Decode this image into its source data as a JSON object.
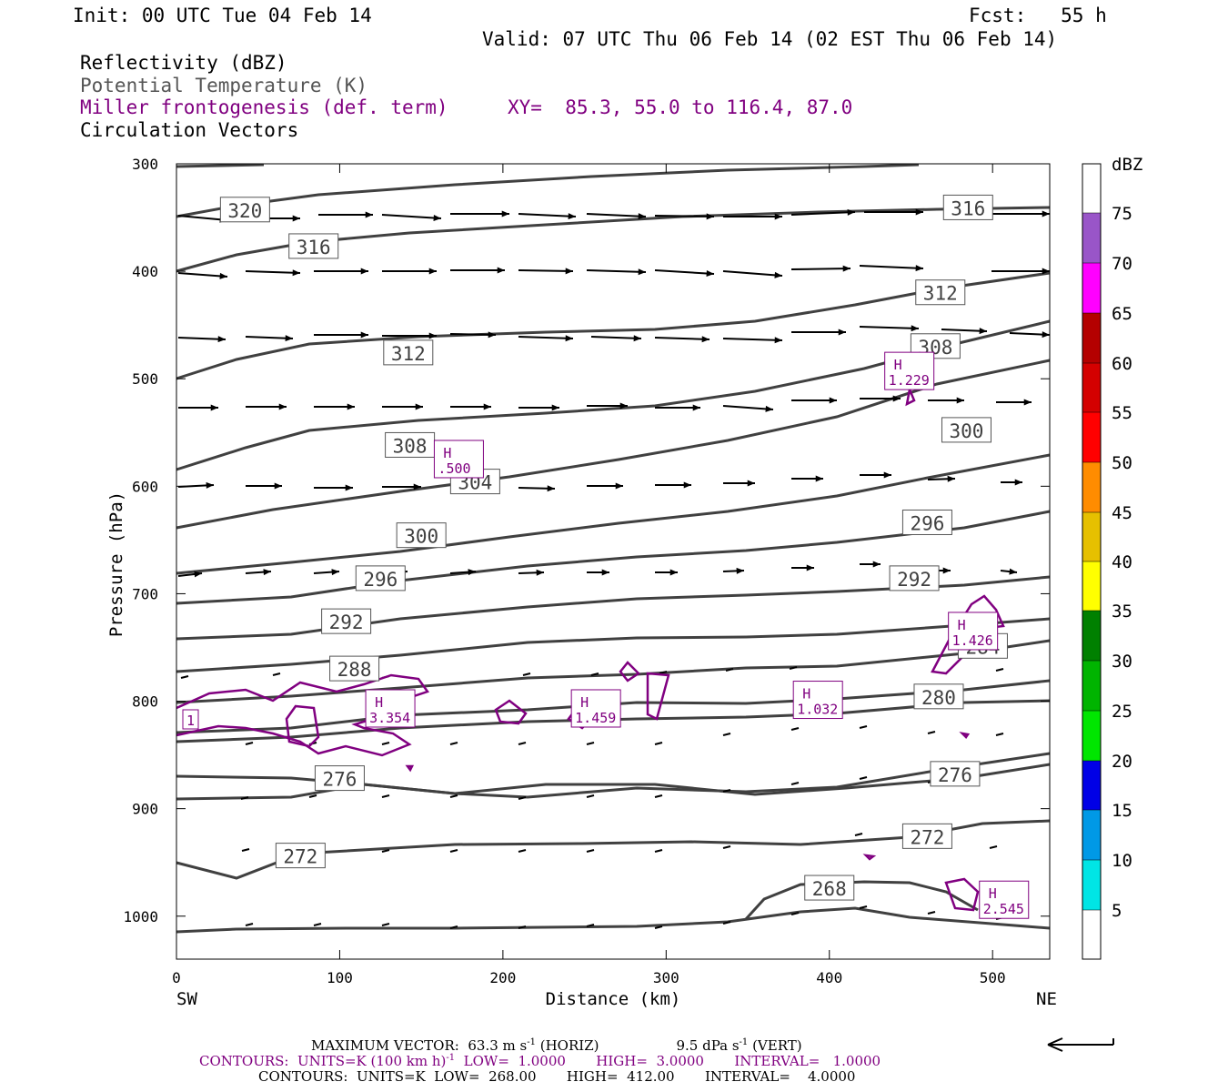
{
  "header": {
    "init": "Init: 00 UTC Tue 04 Feb 14",
    "fcst": "Fcst:   55 h",
    "valid": "Valid: 07 UTC Thu 06 Feb 14 (02 EST Thu 06 Feb 14)",
    "line_reflectivity": "Reflectivity (dBZ)",
    "line_theta": "Potential Temperature (K)",
    "line_miller": "Miller frontogenesis (def. term)",
    "xy_text": "XY=  85.3, 55.0 to 116.4, 87.0",
    "line_vectors": "Circulation Vectors"
  },
  "colors": {
    "theta": "#404040",
    "frontogenesis": "#800080",
    "vectors": "#000000"
  },
  "chart_data": {
    "type": "contour",
    "xlabel": "Distance (km)",
    "ylabel": "Pressure (hPa)",
    "xlim": [
      0,
      535
    ],
    "ylim": [
      1040,
      300
    ],
    "x_ticks": [
      "0",
      "100",
      "200",
      "300",
      "400",
      "500"
    ],
    "y_ticks": [
      "300",
      "400",
      "500",
      "600",
      "700",
      "800",
      "900",
      "1000"
    ],
    "left_endpoint": "SW",
    "right_endpoint": "NE",
    "colorbar": {
      "title": "dBZ",
      "labels": [
        "5",
        "10",
        "15",
        "20",
        "25",
        "30",
        "35",
        "40",
        "45",
        "50",
        "55",
        "60",
        "65",
        "70",
        "75"
      ],
      "colors": [
        "#ffffff",
        "#00e5e5",
        "#0099e6",
        "#0000e6",
        "#00e600",
        "#00b400",
        "#008000",
        "#ffff00",
        "#e6c000",
        "#ff8c00",
        "#ff0000",
        "#d40000",
        "#b40000",
        "#ff00ff",
        "#9955c8",
        "#ffffff"
      ]
    },
    "theta_labels": [
      {
        "text": "320",
        "x": 42,
        "p": 343
      },
      {
        "text": "316",
        "x": 84,
        "p": 377
      },
      {
        "text": "316",
        "x": 485,
        "p": 341
      },
      {
        "text": "312",
        "x": 142,
        "p": 476
      },
      {
        "text": "312",
        "x": 468,
        "p": 420
      },
      {
        "text": "308",
        "x": 143,
        "p": 562
      },
      {
        "text": "308",
        "x": 465,
        "p": 470
      },
      {
        "text": "304",
        "x": 183,
        "p": 596
      },
      {
        "text": "300",
        "x": 150,
        "p": 646
      },
      {
        "text": "300",
        "x": 484,
        "p": 548
      },
      {
        "text": "296",
        "x": 125,
        "p": 686
      },
      {
        "text": "296",
        "x": 460,
        "p": 634
      },
      {
        "text": "292",
        "x": 104,
        "p": 726
      },
      {
        "text": "292",
        "x": 452,
        "p": 686
      },
      {
        "text": "288",
        "x": 109,
        "p": 770
      },
      {
        "text": "284",
        "x": 494,
        "p": 749
      },
      {
        "text": "280",
        "x": 467,
        "p": 796
      },
      {
        "text": "276",
        "x": 100,
        "p": 872
      },
      {
        "text": "276",
        "x": 477,
        "p": 868
      },
      {
        "text": "272",
        "x": 76,
        "p": 944
      },
      {
        "text": "272",
        "x": 460,
        "p": 926
      },
      {
        "text": "268",
        "x": 400,
        "p": 974
      }
    ],
    "frontogenesis_maxima": [
      {
        "label": "H",
        "value": "1.229",
        "x": 449,
        "p": 494
      },
      {
        "label": "H",
        "value": ".500",
        "x": 173,
        "p": 576
      },
      {
        "label": "H",
        "value": "1.426",
        "x": 488,
        "p": 736
      },
      {
        "label": "H",
        "value": "3.354",
        "x": 131,
        "p": 808
      },
      {
        "label": "H",
        "value": "1.459",
        "x": 257,
        "p": 808
      },
      {
        "label": "H",
        "value": "1.032",
        "x": 393,
        "p": 800
      },
      {
        "label": "H",
        "value": "2.545",
        "x": 507,
        "p": 986
      }
    ],
    "frontogenesis_low_label": "1",
    "footer": {
      "max_vector": "MAXIMUM VECTOR:  63.3 m s",
      "max_vector_horiz": " (HORIZ)",
      "max_vector_vert": "9.5 dPa s",
      "max_vector_vert_tail": " (VERT)",
      "exp": "-1",
      "contours1_a": "CONTOURS:  UNITS=K (100 km h)",
      "contours1_b": "  LOW=  1.0000       HIGH=  3.0000       INTERVAL=   1.0000",
      "contours2": "CONTOURS:  UNITS=K  LOW=  268.00       HIGH=  412.00       INTERVAL=    4.0000"
    }
  }
}
